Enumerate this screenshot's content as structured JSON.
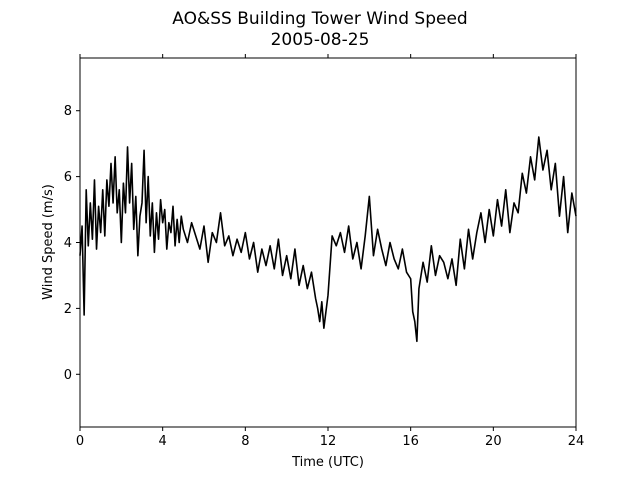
{
  "chart_data": {
    "type": "line",
    "title": "AO&SS Building Tower Wind Speed",
    "subtitle": "2005-08-25",
    "xlabel": "Time (UTC)",
    "ylabel": "Wind Speed (m/s)",
    "xlim": [
      0,
      24
    ],
    "ylim": [
      -1.6,
      9.6
    ],
    "xticks": [
      0,
      4,
      8,
      12,
      16,
      20,
      24
    ],
    "yticks": [
      0,
      2,
      4,
      6,
      8
    ],
    "grid": false,
    "series": [
      {
        "color": "#000000",
        "x": [
          0.0,
          0.1,
          0.2,
          0.3,
          0.4,
          0.5,
          0.6,
          0.7,
          0.8,
          0.9,
          1.0,
          1.1,
          1.2,
          1.3,
          1.4,
          1.5,
          1.6,
          1.7,
          1.8,
          1.9,
          2.0,
          2.1,
          2.2,
          2.3,
          2.4,
          2.5,
          2.6,
          2.7,
          2.8,
          2.9,
          3.0,
          3.1,
          3.2,
          3.3,
          3.4,
          3.5,
          3.6,
          3.7,
          3.8,
          3.9,
          4.0,
          4.1,
          4.2,
          4.3,
          4.4,
          4.5,
          4.6,
          4.7,
          4.8,
          4.9,
          5.0,
          5.2,
          5.4,
          5.6,
          5.8,
          6.0,
          6.2,
          6.4,
          6.6,
          6.8,
          7.0,
          7.2,
          7.4,
          7.6,
          7.8,
          8.0,
          8.2,
          8.4,
          8.6,
          8.8,
          9.0,
          9.2,
          9.4,
          9.6,
          9.8,
          10.0,
          10.2,
          10.4,
          10.6,
          10.8,
          11.0,
          11.2,
          11.4,
          11.5,
          11.6,
          11.7,
          11.8,
          11.9,
          12.0,
          12.2,
          12.4,
          12.6,
          12.8,
          13.0,
          13.2,
          13.4,
          13.6,
          13.8,
          14.0,
          14.2,
          14.4,
          14.6,
          14.8,
          15.0,
          15.2,
          15.4,
          15.6,
          15.8,
          16.0,
          16.1,
          16.2,
          16.3,
          16.4,
          16.6,
          16.8,
          17.0,
          17.2,
          17.4,
          17.6,
          17.8,
          18.0,
          18.2,
          18.4,
          18.6,
          18.8,
          19.0,
          19.2,
          19.4,
          19.6,
          19.8,
          20.0,
          20.2,
          20.4,
          20.6,
          20.8,
          21.0,
          21.2,
          21.4,
          21.6,
          21.8,
          22.0,
          22.2,
          22.4,
          22.6,
          22.8,
          23.0,
          23.2,
          23.4,
          23.6,
          23.8,
          24.0
        ],
        "values": [
          3.6,
          4.5,
          1.8,
          5.6,
          3.9,
          5.2,
          4.1,
          5.9,
          3.8,
          5.1,
          4.3,
          5.6,
          4.2,
          5.9,
          5.1,
          6.4,
          5.2,
          6.6,
          4.9,
          5.6,
          4.0,
          5.8,
          4.9,
          6.9,
          5.2,
          6.4,
          4.4,
          5.4,
          3.6,
          4.8,
          5.2,
          6.8,
          4.6,
          6.0,
          4.2,
          5.2,
          3.7,
          4.9,
          4.1,
          5.3,
          4.6,
          5.0,
          3.8,
          4.6,
          4.3,
          5.1,
          3.9,
          4.7,
          4.0,
          4.8,
          4.4,
          4.0,
          4.6,
          4.2,
          3.8,
          4.5,
          3.4,
          4.3,
          4.0,
          4.9,
          3.9,
          4.2,
          3.6,
          4.1,
          3.7,
          4.3,
          3.5,
          4.0,
          3.1,
          3.8,
          3.3,
          3.9,
          3.2,
          4.1,
          3.0,
          3.6,
          2.9,
          3.8,
          2.7,
          3.3,
          2.6,
          3.1,
          2.3,
          2.0,
          1.6,
          2.2,
          1.4,
          1.9,
          2.4,
          4.2,
          3.9,
          4.3,
          3.7,
          4.5,
          3.5,
          4.0,
          3.2,
          4.2,
          5.4,
          3.6,
          4.4,
          3.8,
          3.3,
          4.0,
          3.5,
          3.2,
          3.8,
          3.1,
          2.9,
          1.9,
          1.6,
          1.0,
          2.6,
          3.4,
          2.8,
          3.9,
          3.0,
          3.6,
          3.4,
          2.9,
          3.5,
          2.7,
          4.1,
          3.2,
          4.4,
          3.5,
          4.3,
          4.9,
          4.0,
          5.0,
          4.2,
          5.3,
          4.5,
          5.6,
          4.3,
          5.2,
          4.9,
          6.1,
          5.5,
          6.6,
          5.9,
          7.2,
          6.2,
          6.8,
          5.6,
          6.4,
          4.8,
          6.0,
          4.3,
          5.5,
          4.8
        ]
      }
    ]
  }
}
